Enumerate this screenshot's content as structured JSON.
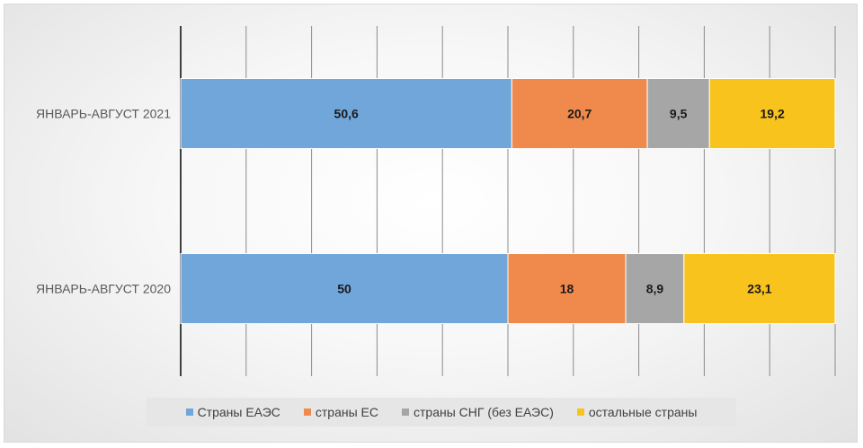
{
  "chart_data": {
    "type": "bar",
    "orientation": "horizontal",
    "stacked": true,
    "categories": [
      "ЯНВАРЬ-АВГУСТ 2021",
      "ЯНВАРЬ-АВГУСТ 2020"
    ],
    "series": [
      {
        "name": "Страны ЕАЭС",
        "color": "#70a6d9",
        "values": [
          50.6,
          50
        ],
        "labels": [
          "50,6",
          "50"
        ]
      },
      {
        "name": "страны ЕС",
        "color": "#ef8a4c",
        "values": [
          20.7,
          18
        ],
        "labels": [
          "20,7",
          "18"
        ]
      },
      {
        "name": "страны СНГ (без ЕАЭС)",
        "color": "#a6a6a6",
        "values": [
          9.5,
          8.9
        ],
        "labels": [
          "9,5",
          "8,9"
        ]
      },
      {
        "name": "остальные страны",
        "color": "#f8c31c",
        "values": [
          19.2,
          23.1
        ],
        "labels": [
          "19,2",
          "23,1"
        ]
      }
    ],
    "xlim": [
      0,
      100
    ],
    "grid": true,
    "legend_position": "bottom"
  }
}
